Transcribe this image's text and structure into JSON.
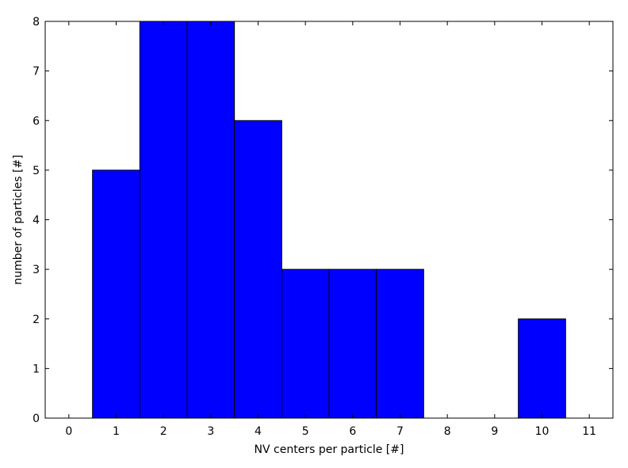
{
  "chart_data": {
    "type": "bar",
    "title": "",
    "xlabel": "NV centers per particle [#]",
    "ylabel": "number of particles [#]",
    "xlim": [
      -0.5,
      11.5
    ],
    "ylim": [
      0,
      8
    ],
    "xticks": [
      "0",
      "1",
      "2",
      "3",
      "4",
      "5",
      "6",
      "7",
      "8",
      "9",
      "10",
      "11"
    ],
    "yticks": [
      "0",
      "1",
      "2",
      "3",
      "4",
      "5",
      "6",
      "7",
      "8"
    ],
    "x": [
      0,
      1,
      2,
      3,
      4,
      5,
      6,
      7,
      8,
      9,
      10,
      11
    ],
    "values": [
      0,
      5,
      8,
      8,
      6,
      3,
      3,
      3,
      0,
      0,
      2,
      0
    ],
    "bar_color": "#0000ff",
    "grid": false,
    "legend": "none"
  }
}
